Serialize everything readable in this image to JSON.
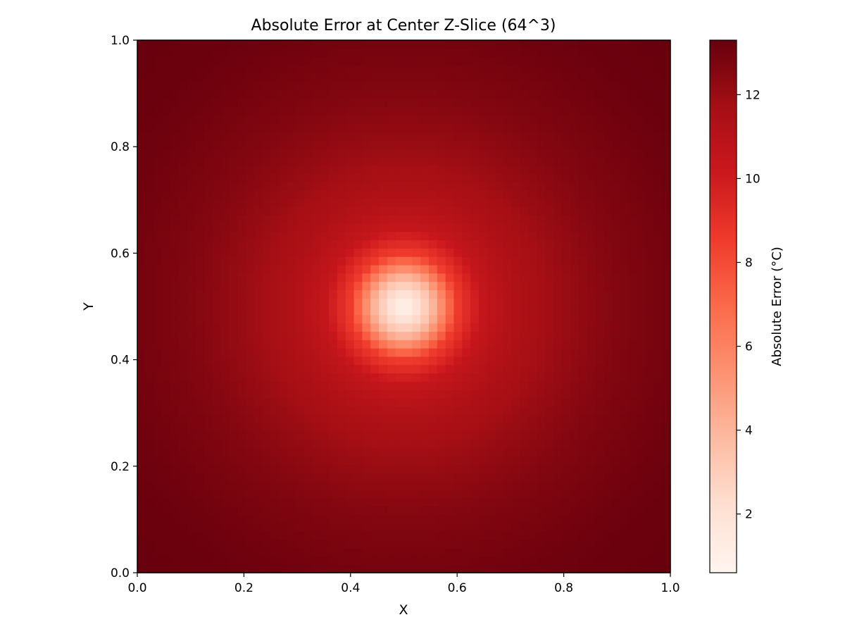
{
  "chart_data": {
    "type": "heatmap",
    "title": "Absolute Error at Center Z-Slice (64^3)",
    "xlabel": "X",
    "ylabel": "Y",
    "xlim": [
      0.0,
      1.0
    ],
    "ylim": [
      0.0,
      1.0
    ],
    "grid": false,
    "grid_resolution": [
      64,
      64
    ],
    "colormap": "Reds",
    "colormap_stops": [
      "#fff5f0",
      "#fee0d2",
      "#fcbba1",
      "#fc9272",
      "#fb6a4a",
      "#ef3b2c",
      "#cb181d",
      "#a50f15",
      "#67000d"
    ],
    "value_range": [
      0.6,
      13.3
    ],
    "field_summary": {
      "minimum_location": [
        0.5,
        0.5
      ],
      "minimum_value": 0.6,
      "maximum_value": 13.3,
      "profile_from_center": [
        {
          "distance": 0.0,
          "value": 0.6
        },
        {
          "distance": 0.05,
          "value": 3.5
        },
        {
          "distance": 0.1,
          "value": 8.5
        },
        {
          "distance": 0.15,
          "value": 10.5
        },
        {
          "distance": 0.2,
          "value": 11.2
        },
        {
          "distance": 0.3,
          "value": 12.0
        },
        {
          "distance": 0.4,
          "value": 12.6
        },
        {
          "distance": 0.55,
          "value": 13.1
        },
        {
          "distance": 0.7,
          "value": 13.3
        }
      ]
    },
    "x_ticks": [
      "0.0",
      "0.2",
      "0.4",
      "0.6",
      "0.8",
      "1.0"
    ],
    "y_ticks": [
      "0.0",
      "0.2",
      "0.4",
      "0.6",
      "0.8",
      "1.0"
    ],
    "colorbar": {
      "label": "Absolute Error (°C)",
      "ticks": [
        "2",
        "4",
        "6",
        "8",
        "10",
        "12"
      ],
      "tick_values": [
        2,
        4,
        6,
        8,
        10,
        12
      ]
    }
  }
}
